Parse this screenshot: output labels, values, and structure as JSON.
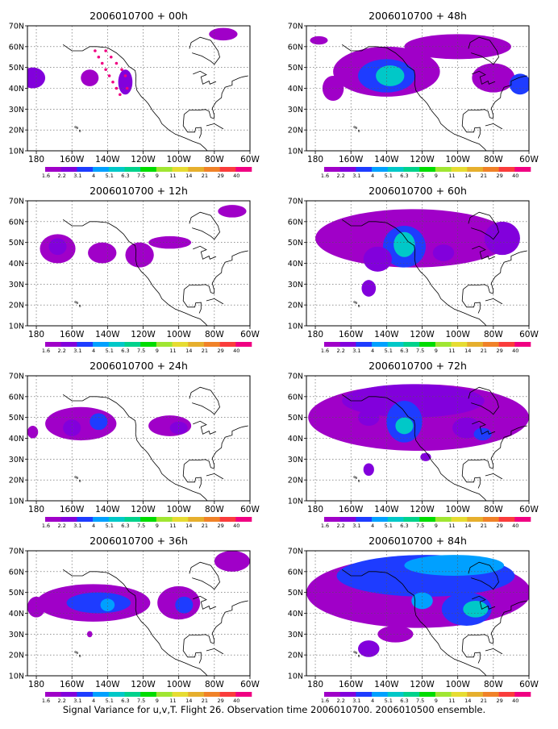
{
  "figure": {
    "caption": "Signal Variance for u,v,T. Flight 26. Observation time 2006010700. 2006010500 ensemble."
  },
  "colors": {
    "scale": [
      "#a000c8",
      "#8200dc",
      "#1e3cff",
      "#00a0ff",
      "#00c8c8",
      "#00d28c",
      "#00dc00",
      "#a0e632",
      "#e6dc32",
      "#e6af2d",
      "#f08228",
      "#fa3c3c",
      "#f00082"
    ],
    "map_line": "#000000",
    "grid": "#555555"
  },
  "chart_data": [
    {
      "type": "heatmap",
      "title": "2006010700 + 00h",
      "x_ticks": [
        "180",
        "160W",
        "140W",
        "120W",
        "100W",
        "80W",
        "60W"
      ],
      "y_ticks": [
        "10N",
        "20N",
        "30N",
        "40N",
        "50N",
        "60N",
        "70N"
      ],
      "xlim": [
        -185,
        -60
      ],
      "ylim": [
        10,
        70
      ],
      "colorbar_labels": [
        "1.6",
        "2.2",
        "3.1",
        "4",
        "5.1",
        "6.3",
        "7.5",
        "9",
        "11",
        "14",
        "21",
        "29",
        "40"
      ],
      "blobs": [
        {
          "lon": 178,
          "lat": 45,
          "rx": 7,
          "ry": 5,
          "level": 1
        },
        {
          "lon": -150,
          "lat": 45,
          "rx": 5,
          "ry": 4,
          "level": 0
        },
        {
          "lon": -130,
          "lat": 43,
          "rx": 4,
          "ry": 6,
          "level": 1
        },
        {
          "lon": -75,
          "lat": 66,
          "rx": 8,
          "ry": 3,
          "level": 0
        }
      ],
      "observations": [
        {
          "lon": -147,
          "lat": 58
        },
        {
          "lon": -145,
          "lat": 55
        },
        {
          "lon": -143,
          "lat": 52
        },
        {
          "lon": -141,
          "lat": 49
        },
        {
          "lon": -139,
          "lat": 46
        },
        {
          "lon": -137,
          "lat": 43
        },
        {
          "lon": -135,
          "lat": 40
        },
        {
          "lon": -133,
          "lat": 37
        },
        {
          "lon": -141,
          "lat": 58
        },
        {
          "lon": -138,
          "lat": 55
        },
        {
          "lon": -135,
          "lat": 52
        },
        {
          "lon": -132,
          "lat": 49
        },
        {
          "lon": -130,
          "lat": 46
        },
        {
          "lon": -129,
          "lat": 40
        }
      ]
    },
    {
      "type": "heatmap",
      "title": "2006010700 + 48h",
      "x_ticks": [
        "180",
        "160W",
        "140W",
        "120W",
        "100W",
        "80W",
        "60W"
      ],
      "y_ticks": [
        "10N",
        "20N",
        "30N",
        "40N",
        "50N",
        "60N",
        "70N"
      ],
      "xlim": [
        -185,
        -60
      ],
      "ylim": [
        10,
        70
      ],
      "colorbar_labels": [
        "1.6",
        "2.2",
        "3.1",
        "4",
        "5.1",
        "6.3",
        "7.5",
        "9",
        "11",
        "14",
        "21",
        "29",
        "40"
      ],
      "blobs": [
        {
          "lon": -140,
          "lat": 48,
          "rx": 30,
          "ry": 12,
          "level": 0
        },
        {
          "lon": -140,
          "lat": 46,
          "rx": 16,
          "ry": 8,
          "level": 2
        },
        {
          "lon": -138,
          "lat": 46,
          "rx": 8,
          "ry": 5,
          "level": 4
        },
        {
          "lon": -100,
          "lat": 60,
          "rx": 30,
          "ry": 6,
          "level": 0
        },
        {
          "lon": -80,
          "lat": 45,
          "rx": 12,
          "ry": 7,
          "level": 0
        },
        {
          "lon": -65,
          "lat": 42,
          "rx": 6,
          "ry": 5,
          "level": 2
        },
        {
          "lon": -178,
          "lat": 63,
          "rx": 5,
          "ry": 2,
          "level": 0
        },
        {
          "lon": -170,
          "lat": 40,
          "rx": 6,
          "ry": 6,
          "level": 0
        }
      ],
      "observations": []
    },
    {
      "type": "heatmap",
      "title": "2006010700 + 12h",
      "x_ticks": [
        "180",
        "160W",
        "140W",
        "120W",
        "100W",
        "80W",
        "60W"
      ],
      "y_ticks": [
        "10N",
        "20N",
        "30N",
        "40N",
        "50N",
        "60N",
        "70N"
      ],
      "xlim": [
        -185,
        -60
      ],
      "ylim": [
        10,
        70
      ],
      "colorbar_labels": [
        "1.6",
        "2.2",
        "3.1",
        "4",
        "5.1",
        "6.3",
        "7.5",
        "9",
        "11",
        "14",
        "21",
        "29",
        "40"
      ],
      "blobs": [
        {
          "lon": -168,
          "lat": 47,
          "rx": 10,
          "ry": 7,
          "level": 0
        },
        {
          "lon": -168,
          "lat": 48,
          "rx": 5,
          "ry": 4,
          "level": 1
        },
        {
          "lon": -143,
          "lat": 45,
          "rx": 8,
          "ry": 5,
          "level": 0
        },
        {
          "lon": -122,
          "lat": 44,
          "rx": 8,
          "ry": 6,
          "level": 0
        },
        {
          "lon": -105,
          "lat": 50,
          "rx": 12,
          "ry": 3,
          "level": 0
        },
        {
          "lon": -70,
          "lat": 65,
          "rx": 8,
          "ry": 3,
          "level": 0
        }
      ],
      "observations": []
    },
    {
      "type": "heatmap",
      "title": "2006010700 + 60h",
      "x_ticks": [
        "180",
        "160W",
        "140W",
        "120W",
        "100W",
        "80W",
        "60W"
      ],
      "y_ticks": [
        "10N",
        "20N",
        "30N",
        "40N",
        "50N",
        "60N",
        "70N"
      ],
      "xlim": [
        -185,
        -60
      ],
      "ylim": [
        10,
        70
      ],
      "colorbar_labels": [
        "1.6",
        "2.2",
        "3.1",
        "4",
        "5.1",
        "6.3",
        "7.5",
        "9",
        "11",
        "14",
        "21",
        "29",
        "40"
      ],
      "blobs": [
        {
          "lon": -125,
          "lat": 52,
          "rx": 55,
          "ry": 14,
          "level": 0
        },
        {
          "lon": -130,
          "lat": 48,
          "rx": 12,
          "ry": 10,
          "level": 2
        },
        {
          "lon": -130,
          "lat": 49,
          "rx": 6,
          "ry": 6,
          "level": 4
        },
        {
          "lon": -145,
          "lat": 42,
          "rx": 8,
          "ry": 6,
          "level": 1
        },
        {
          "lon": -108,
          "lat": 45,
          "rx": 6,
          "ry": 4,
          "level": 1
        },
        {
          "lon": -150,
          "lat": 28,
          "rx": 4,
          "ry": 4,
          "level": 1
        },
        {
          "lon": -75,
          "lat": 52,
          "rx": 10,
          "ry": 8,
          "level": 1
        }
      ],
      "observations": []
    },
    {
      "type": "heatmap",
      "title": "2006010700 + 24h",
      "x_ticks": [
        "180",
        "160W",
        "140W",
        "120W",
        "100W",
        "80W",
        "60W"
      ],
      "y_ticks": [
        "10N",
        "20N",
        "30N",
        "40N",
        "50N",
        "60N",
        "70N"
      ],
      "xlim": [
        -185,
        -60
      ],
      "ylim": [
        10,
        70
      ],
      "colorbar_labels": [
        "1.6",
        "2.2",
        "3.1",
        "4",
        "5.1",
        "6.3",
        "7.5",
        "9",
        "11",
        "14",
        "21",
        "29",
        "40"
      ],
      "blobs": [
        {
          "lon": -155,
          "lat": 47,
          "rx": 20,
          "ry": 8,
          "level": 0
        },
        {
          "lon": -160,
          "lat": 45,
          "rx": 5,
          "ry": 4,
          "level": 1
        },
        {
          "lon": -145,
          "lat": 48,
          "rx": 5,
          "ry": 4,
          "level": 2
        },
        {
          "lon": -105,
          "lat": 46,
          "rx": 12,
          "ry": 5,
          "level": 0
        },
        {
          "lon": -100,
          "lat": 45,
          "rx": 5,
          "ry": 3,
          "level": 1
        },
        {
          "lon": -182,
          "lat": 43,
          "rx": 3,
          "ry": 3,
          "level": 0
        }
      ],
      "observations": []
    },
    {
      "type": "heatmap",
      "title": "2006010700 + 72h",
      "x_ticks": [
        "180",
        "160W",
        "140W",
        "120W",
        "100W",
        "80W",
        "60W"
      ],
      "y_ticks": [
        "10N",
        "20N",
        "30N",
        "40N",
        "50N",
        "60N",
        "70N"
      ],
      "xlim": [
        -185,
        -60
      ],
      "ylim": [
        10,
        70
      ],
      "colorbar_labels": [
        "1.6",
        "2.2",
        "3.1",
        "4",
        "5.1",
        "6.3",
        "7.5",
        "9",
        "11",
        "14",
        "21",
        "29",
        "40"
      ],
      "blobs": [
        {
          "lon": -122,
          "lat": 50,
          "rx": 62,
          "ry": 16,
          "level": 0
        },
        {
          "lon": -125,
          "lat": 58,
          "rx": 40,
          "ry": 8,
          "level": 1
        },
        {
          "lon": -130,
          "lat": 48,
          "rx": 10,
          "ry": 10,
          "level": 2
        },
        {
          "lon": -130,
          "lat": 46,
          "rx": 5,
          "ry": 4,
          "level": 4
        },
        {
          "lon": -95,
          "lat": 45,
          "rx": 8,
          "ry": 5,
          "level": 1
        },
        {
          "lon": -86,
          "lat": 42,
          "rx": 5,
          "ry": 3,
          "level": 2
        },
        {
          "lon": -150,
          "lat": 50,
          "rx": 6,
          "ry": 4,
          "level": 1
        },
        {
          "lon": -150,
          "lat": 25,
          "rx": 3,
          "ry": 3,
          "level": 1
        },
        {
          "lon": -118,
          "lat": 31,
          "rx": 3,
          "ry": 2,
          "level": 1
        }
      ],
      "observations": []
    },
    {
      "type": "heatmap",
      "title": "2006010700 + 36h",
      "x_ticks": [
        "180",
        "160W",
        "140W",
        "120W",
        "100W",
        "80W",
        "60W"
      ],
      "y_ticks": [
        "10N",
        "20N",
        "30N",
        "40N",
        "50N",
        "60N",
        "70N"
      ],
      "xlim": [
        -185,
        -60
      ],
      "ylim": [
        10,
        70
      ],
      "colorbar_labels": [
        "1.6",
        "2.2",
        "3.1",
        "4",
        "5.1",
        "6.3",
        "7.5",
        "9",
        "11",
        "14",
        "21",
        "29",
        "40"
      ],
      "blobs": [
        {
          "lon": -148,
          "lat": 45,
          "rx": 32,
          "ry": 9,
          "level": 0
        },
        {
          "lon": -145,
          "lat": 45,
          "rx": 18,
          "ry": 5,
          "level": 2
        },
        {
          "lon": -140,
          "lat": 44,
          "rx": 4,
          "ry": 3,
          "level": 3
        },
        {
          "lon": -100,
          "lat": 45,
          "rx": 12,
          "ry": 8,
          "level": 0
        },
        {
          "lon": -97,
          "lat": 44,
          "rx": 5,
          "ry": 4,
          "level": 2
        },
        {
          "lon": -180,
          "lat": 43,
          "rx": 5,
          "ry": 5,
          "level": 0
        },
        {
          "lon": -70,
          "lat": 65,
          "rx": 10,
          "ry": 5,
          "level": 0
        },
        {
          "lon": -150,
          "lat": 30,
          "rx": 1.5,
          "ry": 1.5,
          "level": 0
        }
      ],
      "observations": []
    },
    {
      "type": "heatmap",
      "title": "2006010700 + 84h",
      "x_ticks": [
        "180",
        "160W",
        "140W",
        "120W",
        "100W",
        "80W",
        "60W"
      ],
      "y_ticks": [
        "10N",
        "20N",
        "30N",
        "40N",
        "50N",
        "60N",
        "70N"
      ],
      "xlim": [
        -185,
        -60
      ],
      "ylim": [
        10,
        70
      ],
      "colorbar_labels": [
        "1.6",
        "2.2",
        "3.1",
        "4",
        "5.1",
        "6.3",
        "7.5",
        "9",
        "11",
        "14",
        "21",
        "29",
        "40"
      ],
      "blobs": [
        {
          "lon": -122,
          "lat": 50,
          "rx": 63,
          "ry": 17,
          "level": 0
        },
        {
          "lon": -118,
          "lat": 58,
          "rx": 50,
          "ry": 10,
          "level": 2
        },
        {
          "lon": -102,
          "lat": 63,
          "rx": 28,
          "ry": 5,
          "level": 3
        },
        {
          "lon": -95,
          "lat": 42,
          "rx": 14,
          "ry": 8,
          "level": 2
        },
        {
          "lon": -90,
          "lat": 42,
          "rx": 7,
          "ry": 4,
          "level": 4
        },
        {
          "lon": -120,
          "lat": 46,
          "rx": 6,
          "ry": 4,
          "level": 3
        },
        {
          "lon": -150,
          "lat": 23,
          "rx": 6,
          "ry": 4,
          "level": 1
        },
        {
          "lon": -135,
          "lat": 30,
          "rx": 10,
          "ry": 4,
          "level": 0
        }
      ],
      "observations": []
    }
  ]
}
